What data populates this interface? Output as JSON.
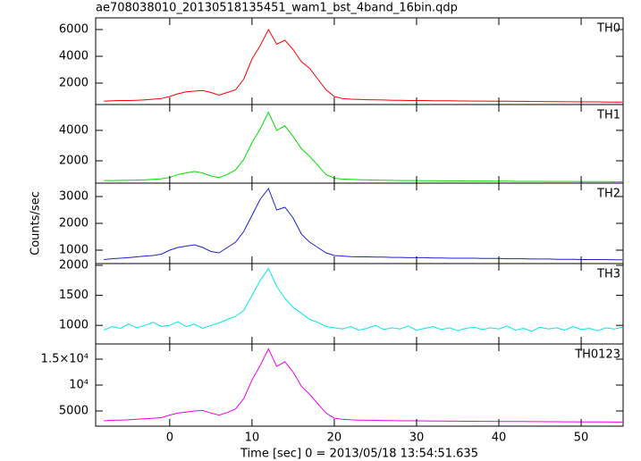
{
  "chart_data": [
    {
      "type": "line",
      "title": "ae708038010_20130518135451_wam1_bst_4band_16bin.qdp",
      "xlim": [
        -9,
        55.1
      ],
      "ylim": [
        400,
        6870
      ],
      "yticks": [
        2000,
        4000,
        6000
      ],
      "x": [
        -8,
        -7,
        -6,
        -5,
        -4,
        -3,
        -2,
        -1,
        0,
        1,
        2,
        3,
        4,
        5,
        6,
        7,
        8,
        9,
        10,
        11,
        12,
        13,
        14,
        15,
        16,
        17,
        18,
        19,
        20,
        21,
        22,
        23,
        24,
        25,
        26,
        27,
        28,
        29,
        30,
        31,
        32,
        33,
        34,
        35,
        36,
        37,
        38,
        39,
        40,
        41,
        42,
        43,
        44,
        45,
        46,
        47,
        48,
        49,
        50,
        51,
        52,
        53,
        54,
        55
      ],
      "series": [
        {
          "name": "TH0",
          "color": "#ff0000",
          "values": [
            650,
            680,
            700,
            700,
            720,
            750,
            800,
            850,
            1000,
            1200,
            1350,
            1400,
            1450,
            1300,
            1100,
            1300,
            1500,
            2300,
            3800,
            4800,
            6000,
            4900,
            5200,
            4500,
            3600,
            3100,
            2300,
            1500,
            1000,
            850,
            800,
            780,
            760,
            750,
            740,
            720,
            720,
            700,
            700,
            700,
            690,
            680,
            680,
            670,
            670,
            660,
            660,
            650,
            650,
            650,
            640,
            640,
            630,
            630,
            620,
            620,
            610,
            610,
            600,
            600,
            600,
            590,
            590,
            580
          ]
        }
      ]
    },
    {
      "type": "line",
      "xlim": [
        -9,
        55.1
      ],
      "ylim": [
        530,
        5700
      ],
      "yticks": [
        2000,
        4000
      ],
      "x": [
        -8,
        -7,
        -6,
        -5,
        -4,
        -3,
        -2,
        -1,
        0,
        1,
        2,
        3,
        4,
        5,
        6,
        7,
        8,
        9,
        10,
        11,
        12,
        13,
        14,
        15,
        16,
        17,
        18,
        19,
        20,
        21,
        22,
        23,
        24,
        25,
        26,
        27,
        28,
        29,
        30,
        31,
        32,
        33,
        34,
        35,
        36,
        37,
        38,
        39,
        40,
        41,
        42,
        43,
        44,
        45,
        46,
        47,
        48,
        49,
        50,
        51,
        52,
        53,
        54,
        55
      ],
      "series": [
        {
          "name": "TH1",
          "color": "#00e000",
          "values": [
            700,
            700,
            710,
            720,
            730,
            750,
            780,
            820,
            900,
            1100,
            1200,
            1300,
            1200,
            1000,
            900,
            1100,
            1400,
            2100,
            3200,
            4100,
            5200,
            4000,
            4300,
            3600,
            2800,
            2300,
            1700,
            1100,
            850,
            800,
            780,
            760,
            740,
            730,
            720,
            710,
            700,
            700,
            700,
            690,
            690,
            680,
            680,
            680,
            670,
            670,
            670,
            660,
            660,
            660,
            650,
            650,
            650,
            650,
            640,
            640,
            640,
            640,
            630,
            630,
            630,
            630,
            620,
            620
          ]
        }
      ]
    },
    {
      "type": "line",
      "ylabel": "Counts/sec",
      "xlim": [
        -9,
        55.1
      ],
      "ylim": [
        500,
        3500
      ],
      "yticks": [
        1000,
        2000,
        3000
      ],
      "x": [
        -8,
        -7,
        -6,
        -5,
        -4,
        -3,
        -2,
        -1,
        0,
        1,
        2,
        3,
        4,
        5,
        6,
        7,
        8,
        9,
        10,
        11,
        12,
        13,
        14,
        15,
        16,
        17,
        18,
        19,
        20,
        21,
        22,
        23,
        24,
        25,
        26,
        27,
        28,
        29,
        30,
        31,
        32,
        33,
        34,
        35,
        36,
        37,
        38,
        39,
        40,
        41,
        42,
        43,
        44,
        45,
        46,
        47,
        48,
        49,
        50,
        51,
        52,
        53,
        54,
        55
      ],
      "series": [
        {
          "name": "TH2",
          "color": "#2020d0",
          "values": [
            650,
            680,
            700,
            720,
            750,
            780,
            800,
            850,
            1000,
            1100,
            1150,
            1200,
            1100,
            950,
            900,
            1100,
            1300,
            1700,
            2300,
            2900,
            3300,
            2500,
            2600,
            2200,
            1600,
            1300,
            1100,
            900,
            800,
            780,
            760,
            750,
            750,
            740,
            740,
            730,
            730,
            720,
            720,
            720,
            710,
            710,
            700,
            700,
            700,
            700,
            690,
            690,
            690,
            680,
            680,
            680,
            670,
            670,
            670,
            660,
            660,
            660,
            650,
            650,
            650,
            650,
            640,
            640
          ]
        }
      ]
    },
    {
      "type": "line",
      "xlim": [
        -9,
        55.1
      ],
      "ylim": [
        690,
        2030
      ],
      "yticks": [
        1000,
        1500,
        2000
      ],
      "x": [
        -8,
        -7,
        -6,
        -5,
        -4,
        -3,
        -2,
        -1,
        0,
        1,
        2,
        3,
        4,
        5,
        6,
        7,
        8,
        9,
        10,
        11,
        12,
        13,
        14,
        15,
        16,
        17,
        18,
        19,
        20,
        21,
        22,
        23,
        24,
        25,
        26,
        27,
        28,
        29,
        30,
        31,
        32,
        33,
        34,
        35,
        36,
        37,
        38,
        39,
        40,
        41,
        42,
        43,
        44,
        45,
        46,
        47,
        48,
        49,
        50,
        51,
        52,
        53,
        54,
        55
      ],
      "series": [
        {
          "name": "TH3",
          "color": "#00e8e8",
          "values": [
            920,
            980,
            950,
            1020,
            960,
            1000,
            1050,
            980,
            1000,
            1060,
            980,
            1020,
            950,
            1000,
            1040,
            1100,
            1150,
            1250,
            1500,
            1750,
            1950,
            1650,
            1450,
            1300,
            1200,
            1100,
            1050,
            980,
            960,
            940,
            980,
            920,
            950,
            1000,
            930,
            960,
            940,
            990,
            920,
            950,
            980,
            930,
            960,
            910,
            950,
            970,
            930,
            960,
            940,
            990,
            920,
            950,
            900,
            970,
            940,
            960,
            920,
            980,
            930,
            950,
            910,
            960,
            940,
            970
          ]
        }
      ]
    },
    {
      "type": "line",
      "xlabel": "Time [sec] 0 = 2013/05/18 13:54:51.635",
      "xlim": [
        -9,
        55.1
      ],
      "ylim": [
        2070,
        17930
      ],
      "yticks": [
        5000,
        {
          "value": 10000,
          "label": "10⁴"
        },
        {
          "value": 15000,
          "label": "1.5×10⁴"
        }
      ],
      "xticks": [
        0,
        10,
        20,
        30,
        40,
        50
      ],
      "x": [
        -8,
        -7,
        -6,
        -5,
        -4,
        -3,
        -2,
        -1,
        0,
        1,
        2,
        3,
        4,
        5,
        6,
        7,
        8,
        9,
        10,
        11,
        12,
        13,
        14,
        15,
        16,
        17,
        18,
        19,
        20,
        21,
        22,
        23,
        24,
        25,
        26,
        27,
        28,
        29,
        30,
        31,
        32,
        33,
        34,
        35,
        36,
        37,
        38,
        39,
        40,
        41,
        42,
        43,
        44,
        45,
        46,
        47,
        48,
        49,
        50,
        51,
        52,
        53,
        54,
        55
      ],
      "series": [
        {
          "name": "TH0123",
          "color": "#ee00ee",
          "values": [
            3100,
            3200,
            3250,
            3300,
            3400,
            3500,
            3600,
            3700,
            4200,
            4600,
            4800,
            5000,
            5100,
            4600,
            4200,
            4700,
            5400,
            7400,
            11000,
            13800,
            17000,
            13600,
            14500,
            12500,
            9800,
            8200,
            6400,
            4600,
            3600,
            3400,
            3300,
            3250,
            3200,
            3200,
            3150,
            3150,
            3100,
            3100,
            3100,
            3080,
            3060,
            3050,
            3040,
            3030,
            3020,
            3010,
            3000,
            3000,
            2990,
            2980,
            2970,
            2960,
            2950,
            2950,
            2940,
            2930,
            2920,
            2910,
            2900,
            2900,
            2890,
            2880,
            2870,
            2860
          ]
        }
      ]
    }
  ]
}
